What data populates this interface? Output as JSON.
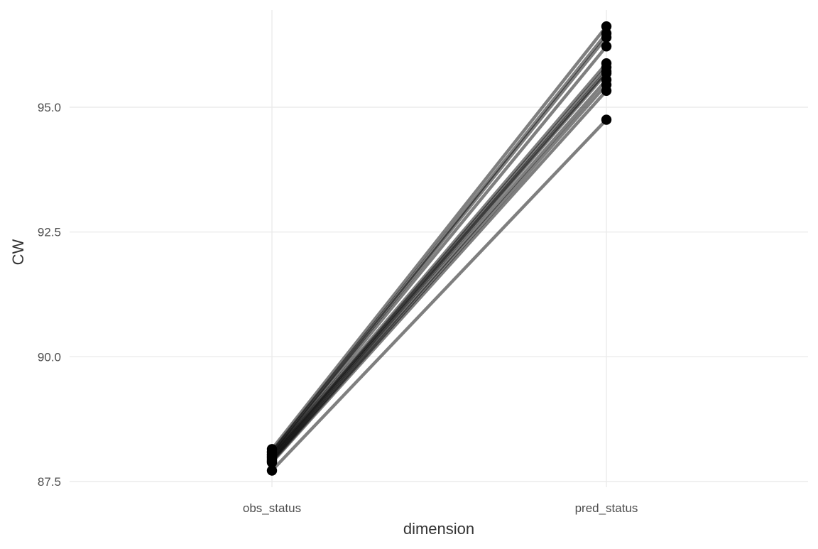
{
  "chart_data": {
    "type": "line",
    "title": "",
    "xlabel": "dimension",
    "ylabel": "CW",
    "categories": [
      "obs_status",
      "pred_status"
    ],
    "ylim": [
      87.3,
      97.0
    ],
    "yticks": [
      87.5,
      90.0,
      92.5,
      95.0
    ],
    "ytick_labels": [
      "87.5",
      "90.0",
      "92.5",
      "95.0"
    ],
    "grid": true,
    "legend": "none",
    "line_color": "#000000",
    "point_color": "#000000",
    "series": [
      {
        "values": [
          88.15,
          96.62
        ]
      },
      {
        "values": [
          88.1,
          96.48
        ]
      },
      {
        "values": [
          88.08,
          96.4
        ]
      },
      {
        "values": [
          88.05,
          96.22
        ]
      },
      {
        "values": [
          88.03,
          95.88
        ]
      },
      {
        "values": [
          88.0,
          95.8
        ]
      },
      {
        "values": [
          87.98,
          95.72
        ]
      },
      {
        "values": [
          87.95,
          95.68
        ]
      },
      {
        "values": [
          87.92,
          95.55
        ]
      },
      {
        "values": [
          87.9,
          95.45
        ]
      },
      {
        "values": [
          87.88,
          95.33
        ]
      },
      {
        "values": [
          87.72,
          94.75
        ]
      }
    ]
  }
}
